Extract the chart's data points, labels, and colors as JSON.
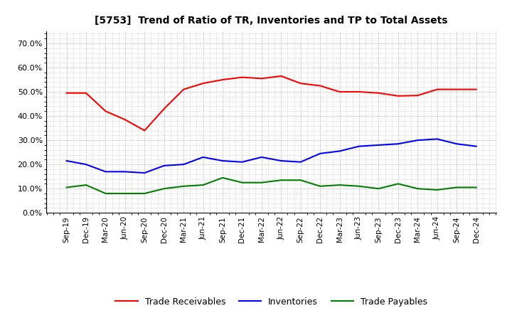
{
  "title": "[5753]  Trend of Ratio of TR, Inventories and TP to Total Assets",
  "x_labels": [
    "Sep-19",
    "Dec-19",
    "Mar-20",
    "Jun-20",
    "Sep-20",
    "Dec-20",
    "Mar-21",
    "Jun-21",
    "Sep-21",
    "Dec-21",
    "Mar-22",
    "Jun-22",
    "Sep-22",
    "Dec-22",
    "Mar-23",
    "Jun-23",
    "Sep-23",
    "Dec-23",
    "Mar-24",
    "Jun-24",
    "Sep-24",
    "Dec-24"
  ],
  "trade_receivables": [
    0.495,
    0.495,
    0.42,
    0.385,
    0.34,
    0.43,
    0.51,
    0.535,
    0.55,
    0.56,
    0.555,
    0.565,
    0.535,
    0.525,
    0.5,
    0.5,
    0.495,
    0.483,
    0.485,
    0.51,
    0.51,
    0.51
  ],
  "inventories": [
    0.215,
    0.2,
    0.17,
    0.17,
    0.165,
    0.195,
    0.2,
    0.23,
    0.215,
    0.21,
    0.23,
    0.215,
    0.21,
    0.245,
    0.255,
    0.275,
    0.28,
    0.285,
    0.3,
    0.305,
    0.285,
    0.275
  ],
  "trade_payables": [
    0.105,
    0.115,
    0.08,
    0.08,
    0.08,
    0.1,
    0.11,
    0.115,
    0.145,
    0.125,
    0.125,
    0.135,
    0.135,
    0.11,
    0.115,
    0.11,
    0.1,
    0.12,
    0.1,
    0.095,
    0.105,
    0.105
  ],
  "tr_color": "#FF0000",
  "inv_color": "#0000FF",
  "tp_color": "#008000",
  "ylim": [
    0.0,
    0.75
  ],
  "yticks": [
    0.0,
    0.1,
    0.2,
    0.3,
    0.4,
    0.5,
    0.6,
    0.7
  ],
  "legend_labels": [
    "Trade Receivables",
    "Inventories",
    "Trade Payables"
  ],
  "background_color": "#FFFFFF",
  "plot_bg_color": "#FFFFFF"
}
